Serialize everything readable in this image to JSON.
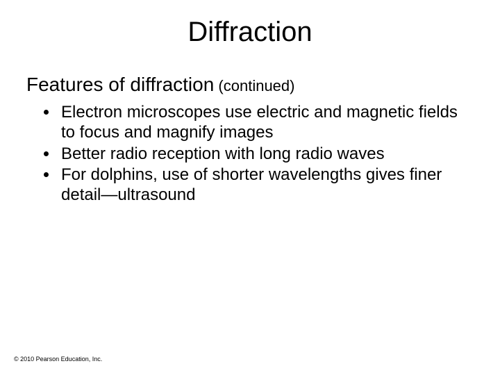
{
  "slide": {
    "title": "Diffraction",
    "subtitle_main": "Features of diffraction",
    "subtitle_paren": " (continued)",
    "bullets": [
      "Electron microscopes use electric and magnetic fields to focus and magnify images",
      "Better radio reception with long radio waves",
      "For dolphins, use of shorter wavelengths gives finer detail—ultrasound"
    ],
    "copyright": "© 2010 Pearson Education, Inc."
  },
  "style": {
    "background_color": "#ffffff",
    "text_color": "#000000",
    "title_fontsize": 40,
    "subtitle_fontsize": 28,
    "subtitle_paren_fontsize": 22,
    "bullet_fontsize": 24,
    "copyright_fontsize": 9,
    "font_family": "Arial"
  }
}
